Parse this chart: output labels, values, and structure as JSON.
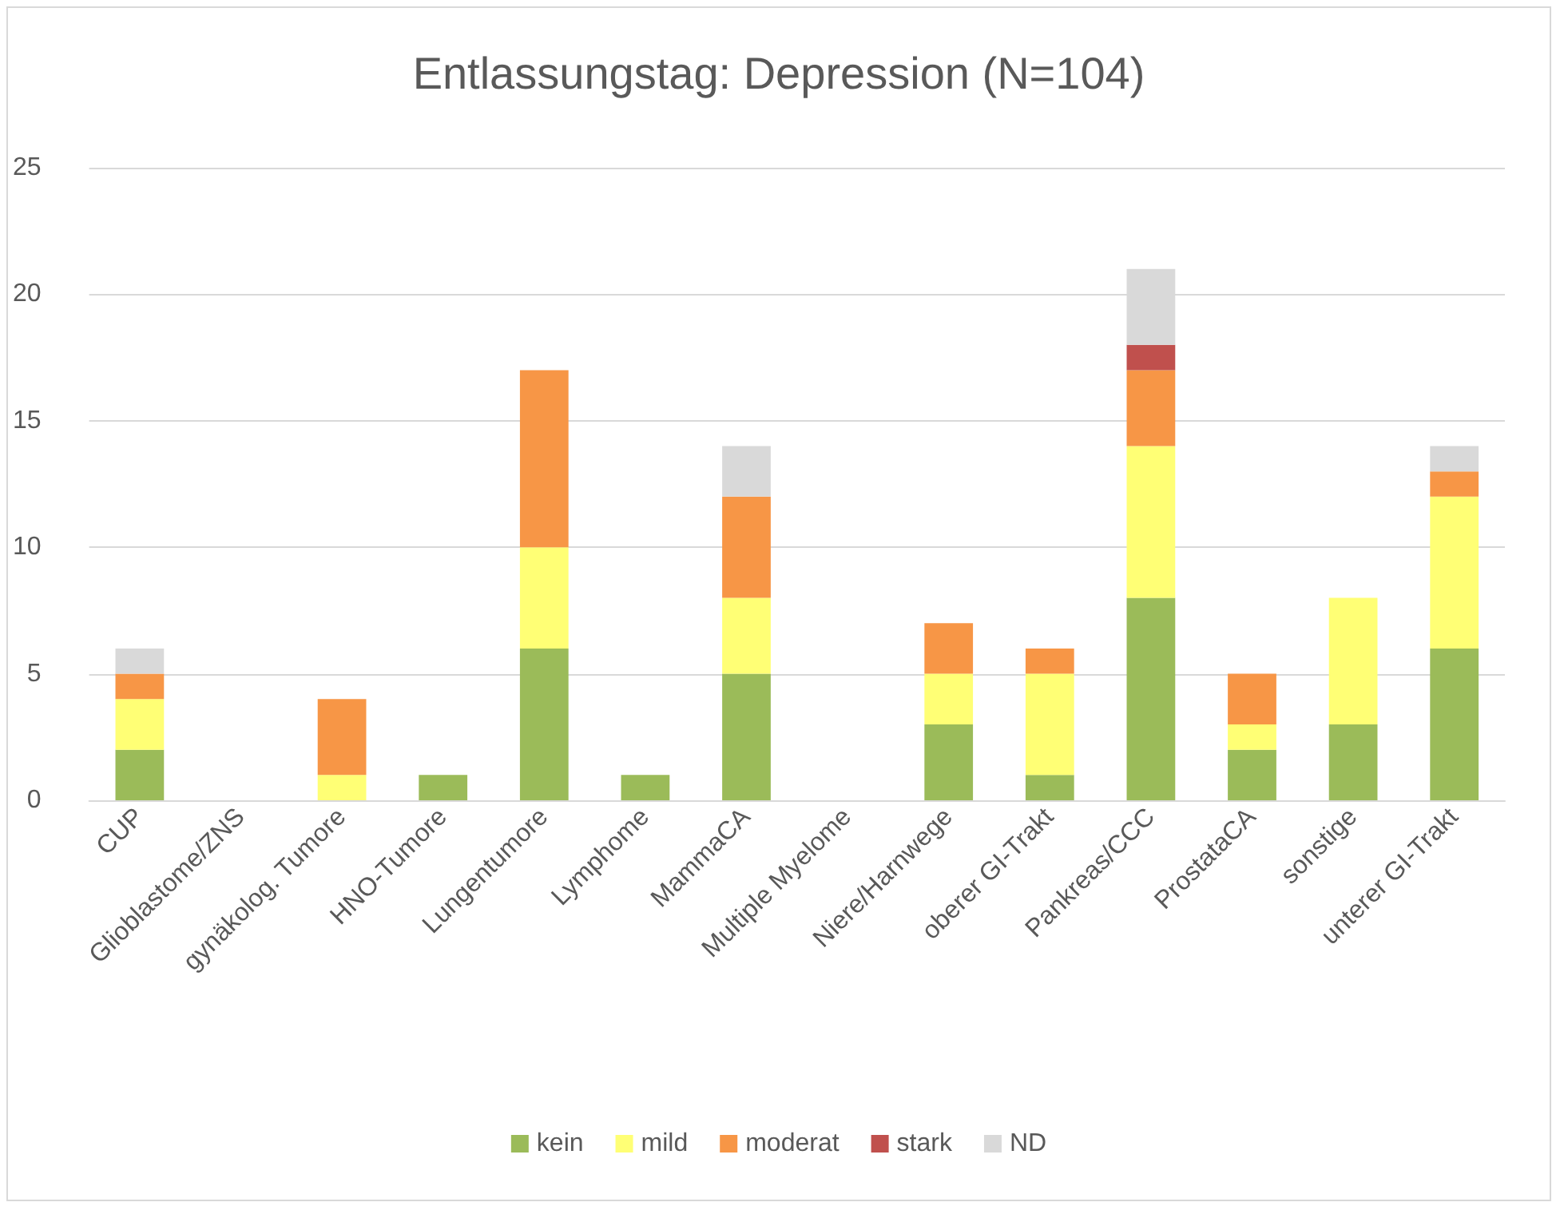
{
  "chart_data": {
    "type": "bar",
    "title": "Entlassungstag: Depression (N=104)",
    "stacked": true,
    "grid": "y",
    "legend": "bottom",
    "categories": [
      "CUP",
      "Glioblastome/ZNS",
      "gynäkolog. Tumore",
      "HNO-Tumore",
      "Lungentumore",
      "Lymphome",
      "MammaCA",
      "Multiple Myelome",
      "Niere/Harnwege",
      "oberer GI-Trakt",
      "Pankreas/CCC",
      "ProstataCA",
      "sonstige",
      "unterer GI-Trakt"
    ],
    "ylim": [
      0,
      25
    ],
    "yticks": [
      0,
      5,
      10,
      15,
      20,
      25
    ],
    "series": [
      {
        "name": "kein",
        "color": "#9bbb59",
        "values": [
          2,
          0,
          0,
          1,
          6,
          1,
          5,
          0,
          3,
          1,
          8,
          2,
          3,
          6
        ]
      },
      {
        "name": "mild",
        "color": "#ffff75",
        "values": [
          2,
          0,
          1,
          0,
          4,
          0,
          3,
          0,
          2,
          4,
          6,
          1,
          5,
          6
        ]
      },
      {
        "name": "moderat",
        "color": "#f79646",
        "values": [
          1,
          0,
          3,
          0,
          7,
          0,
          4,
          0,
          2,
          1,
          3,
          2,
          0,
          1
        ]
      },
      {
        "name": "stark",
        "color": "#c0504d",
        "values": [
          0,
          0,
          0,
          0,
          0,
          0,
          0,
          0,
          0,
          0,
          1,
          0,
          0,
          0
        ]
      },
      {
        "name": "ND",
        "color": "#d9d9d9",
        "values": [
          1,
          0,
          0,
          0,
          0,
          0,
          2,
          0,
          0,
          0,
          3,
          0,
          0,
          1
        ]
      }
    ]
  }
}
